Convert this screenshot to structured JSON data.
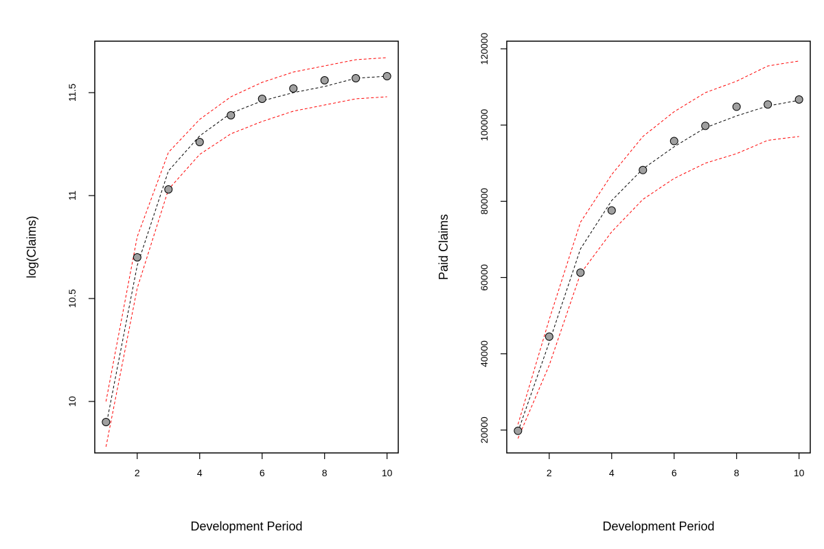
{
  "chart_data": [
    {
      "type": "line",
      "xlabel": "Development Period",
      "ylabel": "log(Claims)",
      "xlim": [
        1,
        10
      ],
      "ylim": [
        9.75,
        11.75
      ],
      "x_ticks": [
        2,
        4,
        6,
        8,
        10
      ],
      "y_ticks": [
        10.0,
        10.5,
        11.0,
        11.5
      ],
      "grid": false,
      "colors": {
        "points": "#a0a0a0",
        "fit": "#000000",
        "bounds": "#ff0000"
      },
      "series": [
        {
          "role": "observed",
          "style": "points",
          "x": [
            1,
            2,
            3,
            4,
            5,
            6,
            7,
            8,
            9,
            10
          ],
          "y": [
            9.9,
            10.7,
            11.03,
            11.26,
            11.39,
            11.47,
            11.52,
            11.56,
            11.57,
            11.58
          ]
        },
        {
          "role": "fitted",
          "style": "dashed-line",
          "x": [
            1,
            2,
            3,
            4,
            5,
            6,
            7,
            8,
            9,
            10
          ],
          "y": [
            9.88,
            10.66,
            11.12,
            11.29,
            11.4,
            11.46,
            11.5,
            11.53,
            11.57,
            11.58
          ]
        },
        {
          "role": "upper",
          "style": "dashed-line",
          "x": [
            1,
            2,
            3,
            4,
            5,
            6,
            7,
            8,
            9,
            10
          ],
          "y": [
            10.0,
            10.8,
            11.21,
            11.37,
            11.48,
            11.55,
            11.6,
            11.63,
            11.66,
            11.67
          ]
        },
        {
          "role": "lower",
          "style": "dashed-line",
          "x": [
            1,
            2,
            3,
            4,
            5,
            6,
            7,
            8,
            9,
            10
          ],
          "y": [
            9.78,
            10.55,
            11.03,
            11.2,
            11.3,
            11.36,
            11.41,
            11.44,
            11.47,
            11.48
          ]
        }
      ]
    },
    {
      "type": "line",
      "xlabel": "Development Period",
      "ylabel": "Paid Claims",
      "xlim": [
        1,
        10
      ],
      "ylim": [
        14000,
        122000
      ],
      "x_ticks": [
        2,
        4,
        6,
        8,
        10
      ],
      "y_ticks": [
        20000,
        40000,
        60000,
        80000,
        100000,
        120000
      ],
      "grid": false,
      "colors": {
        "points": "#a0a0a0",
        "fit": "#000000",
        "bounds": "#ff0000"
      },
      "series": [
        {
          "role": "observed",
          "style": "points",
          "x": [
            1,
            2,
            3,
            4,
            5,
            6,
            7,
            8,
            9,
            10
          ],
          "y": [
            19800,
            44500,
            61300,
            77600,
            88200,
            95800,
            99800,
            104800,
            105400,
            106700
          ]
        },
        {
          "role": "fitted",
          "style": "dashed-line",
          "x": [
            1,
            2,
            3,
            4,
            5,
            6,
            7,
            8,
            9,
            10
          ],
          "y": [
            19600,
            43000,
            67500,
            80200,
            88500,
            94300,
            99300,
            102400,
            105000,
            106500
          ]
        },
        {
          "role": "upper",
          "style": "dashed-line",
          "x": [
            1,
            2,
            3,
            4,
            5,
            6,
            7,
            8,
            9,
            10
          ],
          "y": [
            21500,
            49000,
            74500,
            87000,
            97000,
            103500,
            108500,
            111500,
            115500,
            116800
          ]
        },
        {
          "role": "lower",
          "style": "dashed-line",
          "x": [
            1,
            2,
            3,
            4,
            5,
            6,
            7,
            8,
            9,
            10
          ],
          "y": [
            17800,
            37000,
            61000,
            72000,
            80500,
            86000,
            90000,
            92500,
            96000,
            97000
          ]
        }
      ]
    }
  ]
}
